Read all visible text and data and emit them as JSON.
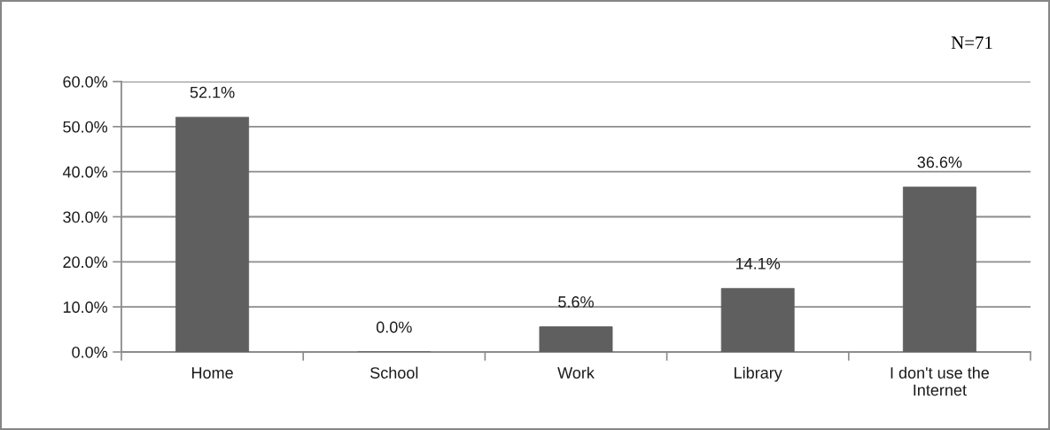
{
  "chart_data": {
    "type": "bar",
    "categories": [
      "Home",
      "School",
      "Work",
      "Library",
      "I don't use the\nInternet"
    ],
    "values": [
      52.1,
      0.0,
      5.6,
      14.1,
      36.6
    ],
    "color": "#5f5f5f",
    "value_labels": [
      "52.1%",
      "0.0%",
      "5.6%",
      "14.1%",
      "36.6%"
    ],
    "ylim": [
      0,
      60
    ],
    "yticks": [
      {
        "value": 0,
        "label": "0.0%"
      },
      {
        "value": 10,
        "label": "10.0%"
      },
      {
        "value": 20,
        "label": "20.0%"
      },
      {
        "value": 30,
        "label": "30.0%"
      },
      {
        "value": 40,
        "label": "40.0%"
      },
      {
        "value": 50,
        "label": "50.0%"
      },
      {
        "value": 60,
        "label": "60.0%"
      }
    ],
    "grid": "y",
    "annotations": [
      "N=71"
    ]
  }
}
